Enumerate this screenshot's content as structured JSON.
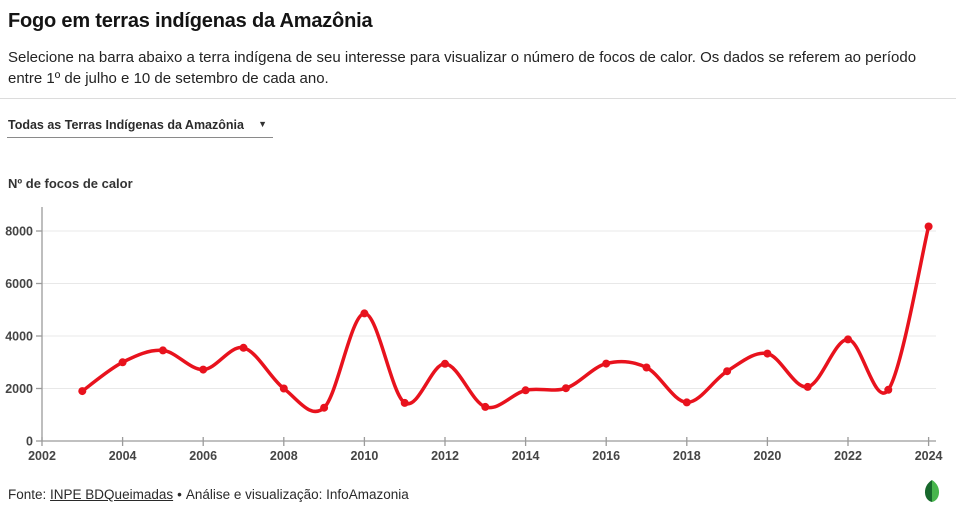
{
  "header": {
    "title": "Fogo em terras indígenas da Amazônia",
    "subtitle": "Selecione na barra abaixo a terra indígena de seu interesse para visualizar o número de focos de calor. Os dados se referem ao período entre 1º de julho e 10 de setembro de cada ano."
  },
  "filter": {
    "selected": "Todas as Terras Indígenas da Amazônia",
    "caret_icon": "▼"
  },
  "chart_data": {
    "type": "line",
    "title": "",
    "ylabel": "Nº de focos de calor",
    "xlabel": "",
    "x": [
      2003,
      2004,
      2005,
      2006,
      2007,
      2008,
      2009,
      2010,
      2011,
      2012,
      2013,
      2014,
      2015,
      2016,
      2017,
      2018,
      2019,
      2020,
      2021,
      2022,
      2023,
      2024
    ],
    "values": [
      1900,
      3000,
      3450,
      2720,
      3550,
      2000,
      1270,
      4860,
      1450,
      2940,
      1300,
      1930,
      2010,
      2950,
      2800,
      1470,
      2660,
      3330,
      2060,
      3870,
      1950,
      8170
    ],
    "series_name": "Nº de focos de calor",
    "xticks": [
      2002,
      2004,
      2006,
      2008,
      2010,
      2012,
      2014,
      2016,
      2018,
      2020,
      2022,
      2024
    ],
    "yticks": [
      0,
      2000,
      4000,
      6000,
      8000
    ],
    "xlim": [
      2002,
      2024.35
    ],
    "ylim": [
      0,
      8950
    ],
    "grid": true,
    "legend_position": "none",
    "curve": "smooth",
    "line_color": "#e8121d",
    "marker_color": "#e8121d",
    "grid_color": "#e8e8e8",
    "axis_color": "#9b9b9b",
    "tick_label_color": "#454545"
  },
  "footer": {
    "source_prefix": "Fonte:",
    "source_link": "INPE BDQueimadas",
    "separator": "•",
    "credit": "Análise e visualização: InfoAmazonia",
    "logo_name": "infoamazonia-leaf-logo",
    "logo_colors": {
      "dark": "#17682c",
      "light": "#47b54c"
    }
  }
}
